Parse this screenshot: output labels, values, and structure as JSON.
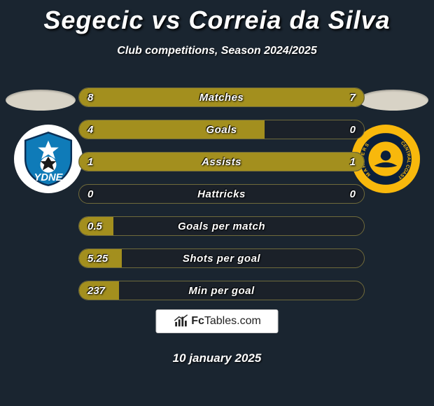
{
  "title": "Segecic vs Correia da Silva",
  "subtitle": "Club competitions, Season 2024/2025",
  "date": "10 january 2025",
  "footer_text_bold": "Fc",
  "footer_text_rest": "Tables.com",
  "colors": {
    "background": "#1a2530",
    "bar_bg": "#1b2129",
    "bar_fill": "#a38f1e",
    "bar_border": "#6f6a3b",
    "ellipse": "#d8d3c6",
    "badge_right_bg": "#f8b80c",
    "badge_left_bg": "#ffffff"
  },
  "bars": [
    {
      "label": "Matches",
      "left_val": "8",
      "right_val": "7",
      "left_pct": 53,
      "right_pct": 47
    },
    {
      "label": "Goals",
      "left_val": "4",
      "right_val": "0",
      "left_pct": 65,
      "right_pct": 0
    },
    {
      "label": "Assists",
      "left_val": "1",
      "right_val": "1",
      "left_pct": 50,
      "right_pct": 50
    },
    {
      "label": "Hattricks",
      "left_val": "0",
      "right_val": "0",
      "left_pct": 0,
      "right_pct": 0
    },
    {
      "label": "Goals per match",
      "left_val": "0.5",
      "right_val": "",
      "left_pct": 12,
      "right_pct": 0
    },
    {
      "label": "Shots per goal",
      "left_val": "5.25",
      "right_val": "",
      "left_pct": 15,
      "right_pct": 0
    },
    {
      "label": "Min per goal",
      "left_val": "237",
      "right_val": "",
      "left_pct": 14,
      "right_pct": 0
    }
  ],
  "badge_left_alt": "Sydney FC",
  "badge_right_alt": "Central Coast Mariners"
}
